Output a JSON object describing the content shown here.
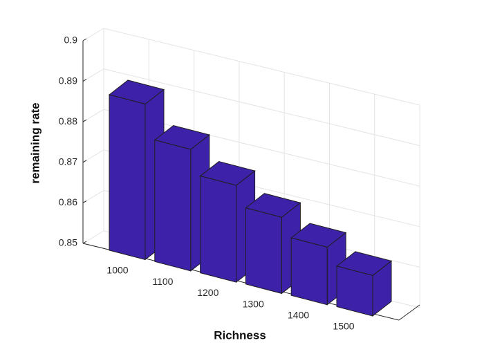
{
  "chart_data": {
    "type": "bar3",
    "xlabel": "Richness",
    "ylabel": "remaining rate",
    "categories": [
      "1000",
      "1100",
      "1200",
      "1300",
      "1400",
      "1500"
    ],
    "values": [
      0.8884,
      0.88,
      0.8739,
      0.8688,
      0.8642,
      0.86
    ],
    "color": "#3d22a9",
    "ylim": [
      0.85,
      0.9
    ],
    "yticks": [
      0.85,
      0.86,
      0.87,
      0.88,
      0.89,
      0.9
    ],
    "grid": true
  }
}
